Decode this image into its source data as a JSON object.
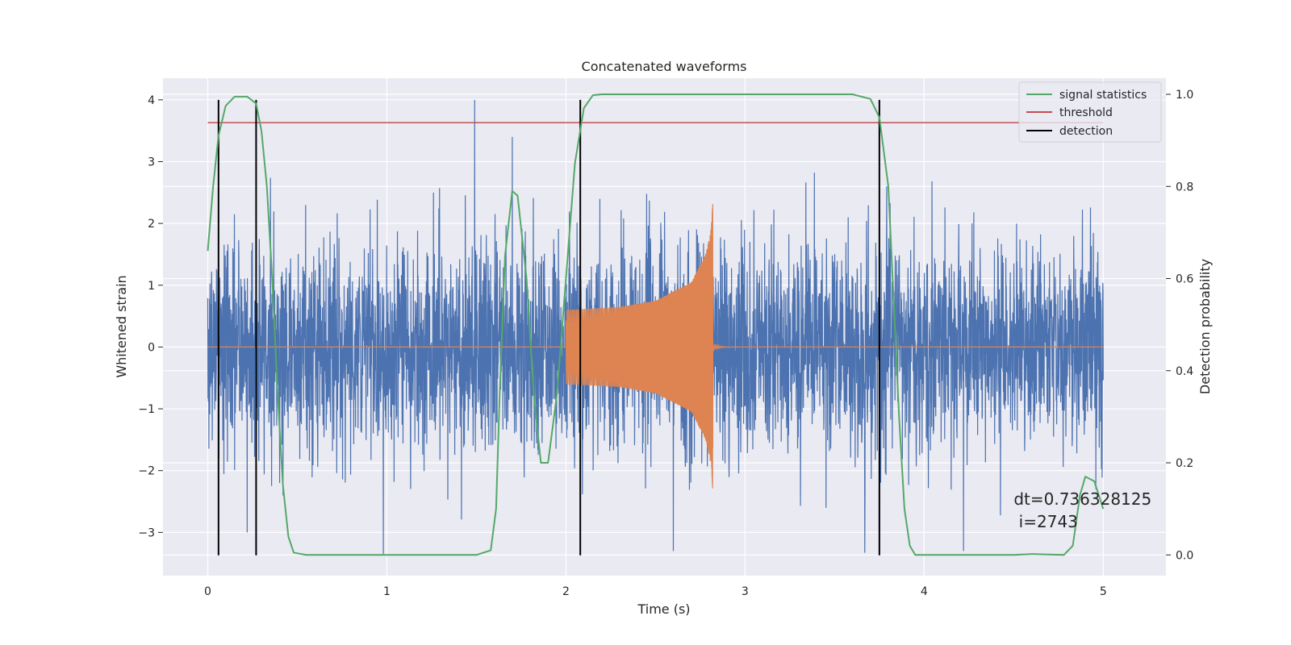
{
  "chart_data": {
    "type": "line",
    "title": "Concatenated waveforms",
    "xlabel": "Time (s)",
    "ylabel": "Whitened strain",
    "y2label": "Detection probability",
    "xlim": [
      -0.25,
      5.35
    ],
    "ylim": [
      -3.7,
      4.35
    ],
    "y2lim": [
      -0.045,
      1.035
    ],
    "xticks": [
      0,
      1,
      2,
      3,
      4,
      5
    ],
    "yticks": [
      -3,
      -2,
      -1,
      0,
      1,
      2,
      3,
      4
    ],
    "y2ticks": [
      0.0,
      0.2,
      0.4,
      0.6,
      0.8,
      1.0
    ],
    "grid": true,
    "legend_position": "top-right",
    "series": [
      {
        "name": "",
        "axis": "left",
        "kind": "noise",
        "color": "#4c72b0",
        "x_range": [
          0,
          5
        ],
        "amplitude_std": 0.85,
        "spikes": [
          [
            1.49,
            4.0
          ],
          [
            1.7,
            3.4
          ],
          [
            0.98,
            -3.35
          ],
          [
            2.6,
            -3.3
          ],
          [
            4.22,
            -3.3
          ],
          [
            0.22,
            -3.0
          ]
        ]
      },
      {
        "name": "",
        "axis": "left",
        "kind": "chirp",
        "color": "#dd8452",
        "x_range": [
          0,
          5
        ],
        "chirp_start": 2.0,
        "chirp_end": 2.82,
        "envelope": [
          [
            2.0,
            0.6
          ],
          [
            2.3,
            0.65
          ],
          [
            2.5,
            0.75
          ],
          [
            2.7,
            1.05
          ],
          [
            2.78,
            1.5
          ],
          [
            2.81,
            1.9
          ],
          [
            2.82,
            2.35
          ]
        ]
      },
      {
        "name": "signal statistics",
        "axis": "right",
        "color": "#55a868",
        "points": [
          [
            0.0,
            0.66
          ],
          [
            0.03,
            0.8
          ],
          [
            0.06,
            0.91
          ],
          [
            0.1,
            0.975
          ],
          [
            0.15,
            0.995
          ],
          [
            0.22,
            0.995
          ],
          [
            0.27,
            0.98
          ],
          [
            0.3,
            0.92
          ],
          [
            0.33,
            0.8
          ],
          [
            0.36,
            0.6
          ],
          [
            0.39,
            0.35
          ],
          [
            0.42,
            0.15
          ],
          [
            0.45,
            0.04
          ],
          [
            0.48,
            0.005
          ],
          [
            0.55,
            0.0
          ],
          [
            1.5,
            0.0
          ],
          [
            1.58,
            0.01
          ],
          [
            1.61,
            0.1
          ],
          [
            1.63,
            0.35
          ],
          [
            1.66,
            0.65
          ],
          [
            1.7,
            0.79
          ],
          [
            1.73,
            0.78
          ],
          [
            1.78,
            0.6
          ],
          [
            1.82,
            0.35
          ],
          [
            1.86,
            0.2
          ],
          [
            1.9,
            0.2
          ],
          [
            1.95,
            0.35
          ],
          [
            2.0,
            0.6
          ],
          [
            2.05,
            0.85
          ],
          [
            2.1,
            0.97
          ],
          [
            2.15,
            0.998
          ],
          [
            2.2,
            1.0
          ],
          [
            3.6,
            1.0
          ],
          [
            3.7,
            0.99
          ],
          [
            3.75,
            0.95
          ],
          [
            3.8,
            0.8
          ],
          [
            3.83,
            0.55
          ],
          [
            3.86,
            0.3
          ],
          [
            3.89,
            0.1
          ],
          [
            3.92,
            0.02
          ],
          [
            3.95,
            0.0
          ],
          [
            4.5,
            0.0
          ],
          [
            4.6,
            0.002
          ],
          [
            4.78,
            0.0
          ],
          [
            4.83,
            0.02
          ],
          [
            4.87,
            0.13
          ],
          [
            4.9,
            0.17
          ],
          [
            4.95,
            0.16
          ],
          [
            5.0,
            0.1
          ]
        ]
      },
      {
        "name": "threshold",
        "axis": "left",
        "color": "#c44e52",
        "points": [
          [
            0,
            3.63
          ],
          [
            5,
            3.63
          ]
        ]
      },
      {
        "name": "detection",
        "axis": "left",
        "color": "#000000",
        "vlines": [
          0.06,
          0.27,
          2.08,
          3.75
        ],
        "ymin": -3.37,
        "ymax": 4.0
      }
    ],
    "annotation": {
      "line1": "dt=0.736328125",
      "line2": " i=2743",
      "x": 4.5,
      "y1": -2.55,
      "y2": -2.92
    }
  }
}
